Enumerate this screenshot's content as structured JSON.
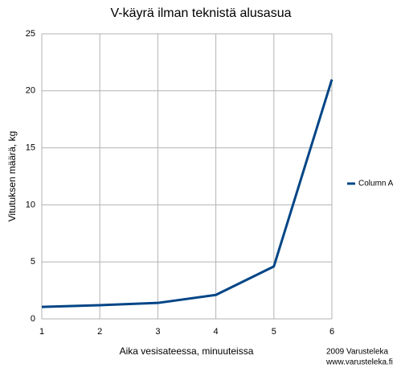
{
  "chart_data": {
    "type": "line",
    "title": "V-käyrä ilman teknistä alusasua",
    "x_label": "Aika vesisateessa, minuuteissa",
    "y_label": "Vitutuksen määrä, kg",
    "x": [
      1,
      2,
      3,
      4,
      5,
      6
    ],
    "series": [
      {
        "name": "Column A",
        "color": "#004586",
        "values": [
          1.05,
          1.2,
          1.4,
          2.1,
          4.6,
          21.0
        ]
      }
    ],
    "xlim": [
      1,
      6
    ],
    "xticks": [
      1,
      2,
      3,
      4,
      5,
      6
    ],
    "ylim": [
      0,
      25
    ],
    "yticks": [
      0,
      5,
      10,
      15,
      20,
      25
    ],
    "grid": true,
    "legend": "right",
    "credits": [
      "2009 Varusteleka",
      "www.varusteleka.fi"
    ]
  }
}
